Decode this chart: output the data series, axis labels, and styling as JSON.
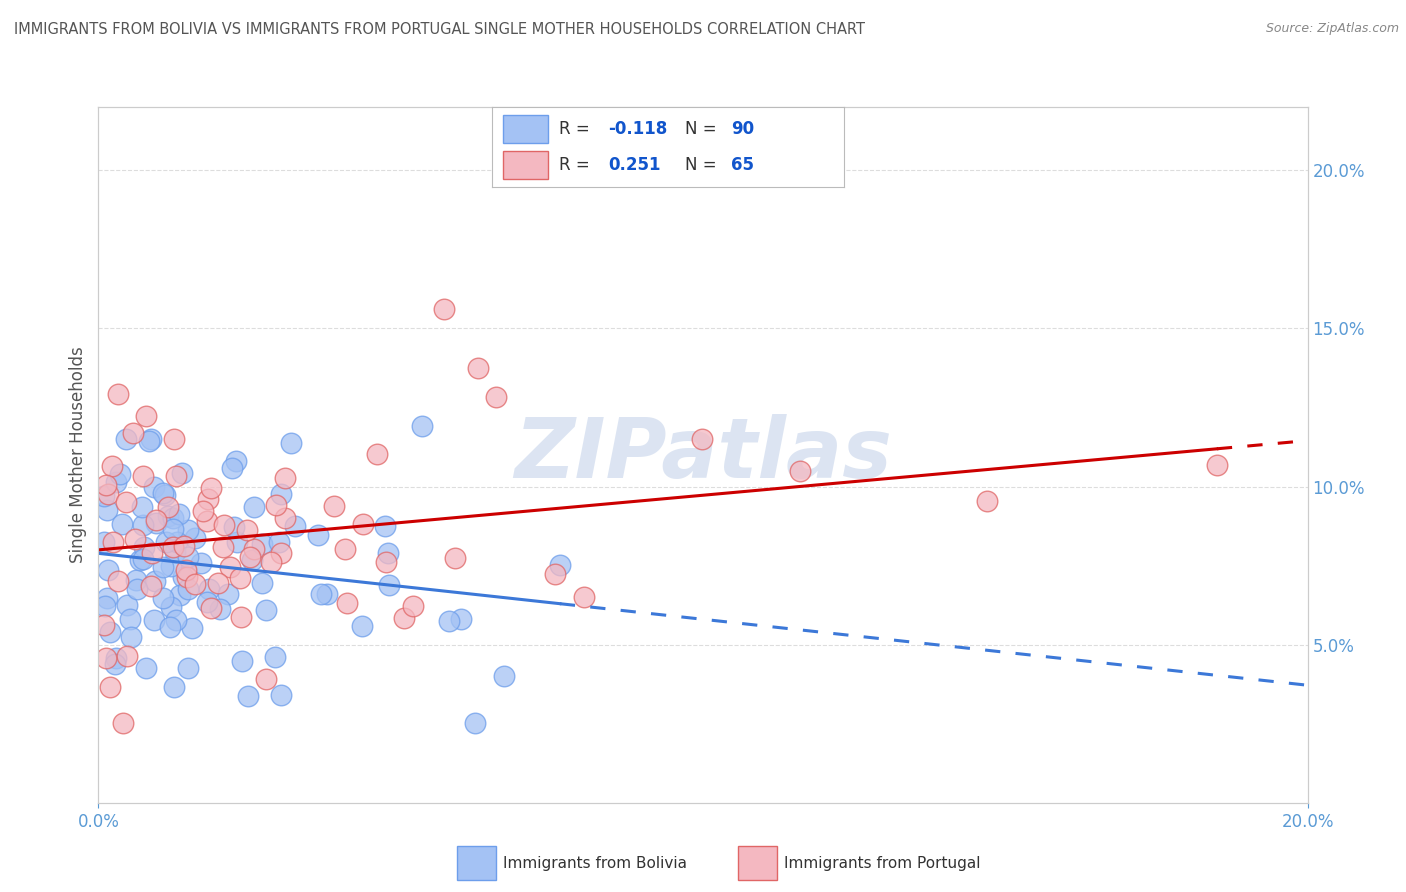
{
  "title": "IMMIGRANTS FROM BOLIVIA VS IMMIGRANTS FROM PORTUGAL SINGLE MOTHER HOUSEHOLDS CORRELATION CHART",
  "source": "Source: ZipAtlas.com",
  "ylabel": "Single Mother Households",
  "bolivia_color": "#a4c2f4",
  "portugal_color": "#f4b8c1",
  "bolivia_edge": "#6d9eeb",
  "portugal_edge": "#e06666",
  "bolivia_trendline_color": "#3c78d8",
  "portugal_trendline_color": "#cc0000",
  "legend_text_color": "#444444",
  "legend_value_color": "#1155cc",
  "xlim": [
    0.0,
    0.2
  ],
  "ylim": [
    0.0,
    0.22
  ],
  "yticks": [
    0.05,
    0.1,
    0.15,
    0.2
  ],
  "xticks": [
    0.0,
    0.2
  ],
  "watermark": "ZIPatlas",
  "background_color": "#ffffff",
  "grid_color": "#dddddd",
  "r_bolivia": -0.118,
  "n_bolivia": 90,
  "r_portugal": 0.251,
  "n_portugal": 65
}
